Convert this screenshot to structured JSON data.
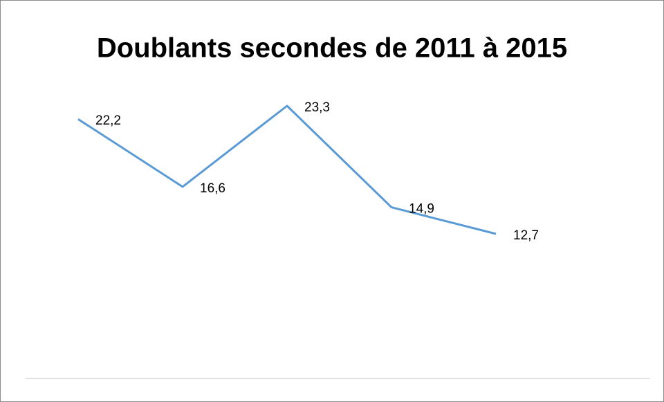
{
  "chart_data": {
    "type": "line",
    "title": "Doublants secondes de 2011 à 2015",
    "categories": [
      null,
      null,
      null,
      null,
      null
    ],
    "series": [
      {
        "color": "#5b9bd5",
        "values": [
          22.2,
          16.6,
          23.3,
          14.9,
          12.7
        ],
        "value_labels": [
          "22,2",
          "16,6",
          "23,3",
          "14,9",
          "12,7"
        ]
      }
    ]
  }
}
